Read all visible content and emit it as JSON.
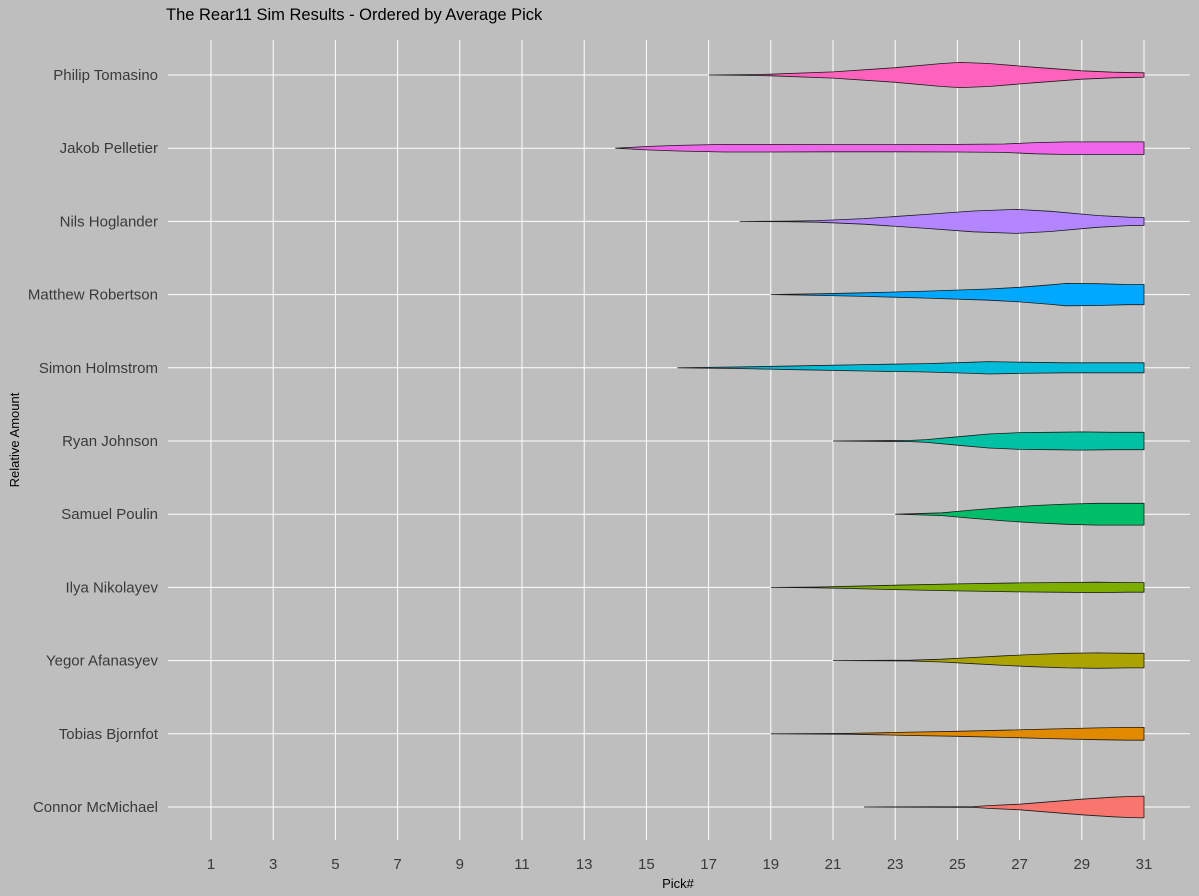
{
  "chart_data": {
    "type": "violin",
    "title": "The Rear11 Sim Results - Ordered by Average Pick",
    "xlabel": "Pick#",
    "ylabel": "Relative Amount",
    "x_ticks": [
      1,
      3,
      5,
      7,
      9,
      11,
      13,
      15,
      17,
      19,
      21,
      23,
      25,
      27,
      29,
      31
    ],
    "xlim": [
      0,
      32.3
    ],
    "grid": true,
    "legend": "none",
    "series": [
      {
        "name": "Philip Tomasino",
        "color": "#FF62BC",
        "density": [
          [
            17.0,
            0.0
          ],
          [
            18.3,
            0.03
          ],
          [
            19.0,
            0.06
          ],
          [
            21.0,
            0.22
          ],
          [
            23.0,
            0.52
          ],
          [
            24.5,
            0.82
          ],
          [
            25.1,
            0.9
          ],
          [
            26.0,
            0.82
          ],
          [
            27.5,
            0.55
          ],
          [
            29.0,
            0.3
          ],
          [
            30.0,
            0.2
          ],
          [
            31.0,
            0.16
          ]
        ]
      },
      {
        "name": "Jakob Pelletier",
        "color": "#F066EA",
        "density": [
          [
            14.0,
            0.0
          ],
          [
            14.5,
            0.06
          ],
          [
            15.0,
            0.12
          ],
          [
            16.0,
            0.2
          ],
          [
            17.5,
            0.27
          ],
          [
            19.0,
            0.27
          ],
          [
            21.0,
            0.26
          ],
          [
            23.0,
            0.26
          ],
          [
            25.0,
            0.27
          ],
          [
            26.5,
            0.3
          ],
          [
            27.5,
            0.4
          ],
          [
            28.5,
            0.45
          ],
          [
            30.0,
            0.45
          ],
          [
            31.0,
            0.45
          ]
        ]
      },
      {
        "name": "Nils Hoglander",
        "color": "#B385FF",
        "density": [
          [
            18.0,
            0.0
          ],
          [
            19.5,
            0.02
          ],
          [
            20.5,
            0.06
          ],
          [
            22.0,
            0.2
          ],
          [
            24.0,
            0.5
          ],
          [
            25.5,
            0.74
          ],
          [
            26.9,
            0.86
          ],
          [
            28.0,
            0.72
          ],
          [
            29.5,
            0.42
          ],
          [
            30.5,
            0.3
          ],
          [
            31.0,
            0.28
          ]
        ]
      },
      {
        "name": "Matthew Robertson",
        "color": "#00A9FF",
        "density": [
          [
            19.0,
            0.0
          ],
          [
            19.5,
            0.02
          ],
          [
            20.5,
            0.06
          ],
          [
            22.0,
            0.13
          ],
          [
            24.0,
            0.25
          ],
          [
            26.0,
            0.4
          ],
          [
            27.0,
            0.52
          ],
          [
            28.0,
            0.7
          ],
          [
            28.5,
            0.8
          ],
          [
            29.5,
            0.78
          ],
          [
            30.5,
            0.72
          ],
          [
            31.0,
            0.72
          ]
        ]
      },
      {
        "name": "Simon Holmstrom",
        "color": "#00BCD8",
        "density": [
          [
            16.0,
            0.0
          ],
          [
            17.5,
            0.04
          ],
          [
            18.5,
            0.08
          ],
          [
            20.0,
            0.14
          ],
          [
            22.0,
            0.23
          ],
          [
            24.0,
            0.3
          ],
          [
            25.5,
            0.4
          ],
          [
            26.0,
            0.44
          ],
          [
            27.0,
            0.4
          ],
          [
            28.5,
            0.36
          ],
          [
            29.5,
            0.36
          ],
          [
            31.0,
            0.36
          ]
        ]
      },
      {
        "name": "Ryan Johnson",
        "color": "#00C1A3",
        "density": [
          [
            21.0,
            0.0
          ],
          [
            23.5,
            0.04
          ],
          [
            24.0,
            0.1
          ],
          [
            25.0,
            0.3
          ],
          [
            26.0,
            0.5
          ],
          [
            27.0,
            0.6
          ],
          [
            28.0,
            0.62
          ],
          [
            29.0,
            0.65
          ],
          [
            30.0,
            0.62
          ],
          [
            31.0,
            0.62
          ]
        ]
      },
      {
        "name": "Samuel Poulin",
        "color": "#00BE67",
        "density": [
          [
            23.0,
            0.0
          ],
          [
            23.5,
            0.03
          ],
          [
            24.5,
            0.1
          ],
          [
            25.5,
            0.3
          ],
          [
            26.5,
            0.48
          ],
          [
            27.5,
            0.62
          ],
          [
            28.5,
            0.72
          ],
          [
            29.5,
            0.78
          ],
          [
            31.0,
            0.78
          ]
        ]
      },
      {
        "name": "Ilya Nikolayev",
        "color": "#7CAE00",
        "density": [
          [
            19.0,
            0.0
          ],
          [
            20.5,
            0.03
          ],
          [
            21.5,
            0.08
          ],
          [
            23.0,
            0.16
          ],
          [
            25.0,
            0.25
          ],
          [
            27.0,
            0.32
          ],
          [
            28.5,
            0.35
          ],
          [
            29.5,
            0.37
          ],
          [
            30.5,
            0.34
          ],
          [
            31.0,
            0.34
          ]
        ]
      },
      {
        "name": "Yegor Afanasyev",
        "color": "#ABA300",
        "density": [
          [
            21.0,
            0.0
          ],
          [
            23.5,
            0.03
          ],
          [
            24.5,
            0.1
          ],
          [
            25.5,
            0.22
          ],
          [
            26.5,
            0.34
          ],
          [
            27.5,
            0.44
          ],
          [
            28.5,
            0.52
          ],
          [
            29.5,
            0.55
          ],
          [
            30.5,
            0.52
          ],
          [
            31.0,
            0.52
          ]
        ]
      },
      {
        "name": "Tobias Bjornfot",
        "color": "#E18A00",
        "density": [
          [
            19.0,
            0.0
          ],
          [
            21.5,
            0.03
          ],
          [
            22.5,
            0.07
          ],
          [
            23.5,
            0.12
          ],
          [
            25.0,
            0.18
          ],
          [
            26.5,
            0.26
          ],
          [
            28.0,
            0.34
          ],
          [
            29.5,
            0.42
          ],
          [
            30.5,
            0.46
          ],
          [
            31.0,
            0.46
          ]
        ]
      },
      {
        "name": "Connor McMichael",
        "color": "#F8766D",
        "density": [
          [
            22.0,
            0.0
          ],
          [
            25.5,
            0.03
          ],
          [
            26.0,
            0.1
          ],
          [
            27.0,
            0.2
          ],
          [
            28.0,
            0.38
          ],
          [
            29.0,
            0.56
          ],
          [
            30.0,
            0.7
          ],
          [
            30.5,
            0.75
          ],
          [
            31.0,
            0.78
          ]
        ]
      }
    ]
  }
}
